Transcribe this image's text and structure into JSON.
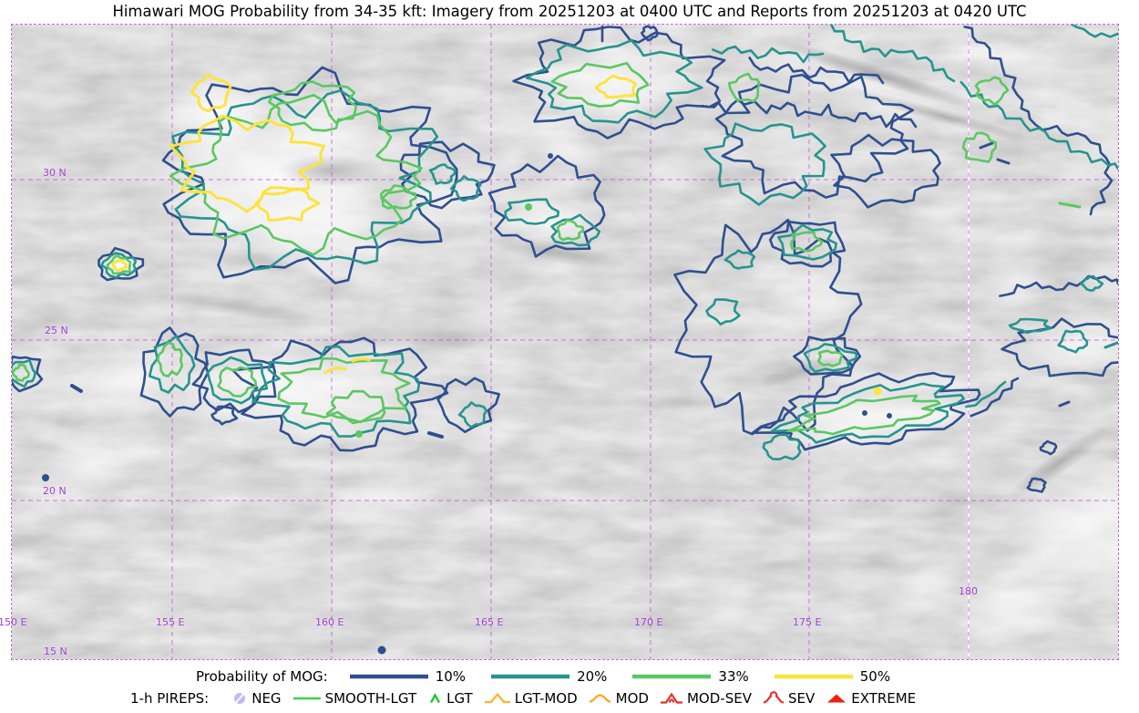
{
  "title": "Himawari MOG Probability from 34-35 kft: Imagery from 20251203 at 0400 UTC and Reports from 20251203 at 0420 UTC",
  "map": {
    "frame_color": "#c06ad2",
    "grid_color": "#c050d0",
    "label_color": "#a23ed2",
    "lat_labels": [
      "30 N",
      "25 N",
      "20 N",
      "15 N"
    ],
    "lon_labels": [
      "150 E",
      "155 E",
      "160 E",
      "165 E",
      "170 E",
      "175 E",
      "180"
    ],
    "contour_levels": [
      {
        "probability": "10%",
        "color": "#2f4f8f"
      },
      {
        "probability": "20%",
        "color": "#27948e"
      },
      {
        "probability": "33%",
        "color": "#5bc763"
      },
      {
        "probability": "50%",
        "color": "#fde33c"
      }
    ]
  },
  "legend": {
    "probability": {
      "label": "Probability of MOG:",
      "items": [
        {
          "label": "10%",
          "color": "#2f4f8f"
        },
        {
          "label": "20%",
          "color": "#27948e"
        },
        {
          "label": "33%",
          "color": "#5bc763"
        },
        {
          "label": "50%",
          "color": "#fde33c"
        }
      ]
    },
    "pireps": {
      "label": "1-h PIREPS:",
      "items": [
        {
          "label": "NEG",
          "color": "#bfbaf0",
          "icon": "neg-circle-slash-icon"
        },
        {
          "label": "SMOOTH-LGT",
          "color": "#3fd23f",
          "icon": "smooth-lgt-line-icon"
        },
        {
          "label": "LGT",
          "color": "#27c432",
          "icon": "lgt-caret-icon"
        },
        {
          "label": "LGT-MOD",
          "color": "#ffb42c",
          "icon": "lgt-mod-open-triangle-icon"
        },
        {
          "label": "MOD",
          "color": "#ffa81f",
          "icon": "mod-hump-icon"
        },
        {
          "label": "MOD-SEV",
          "color": "#e2342b",
          "icon": "mod-sev-triangle-loop-icon"
        },
        {
          "label": "SEV",
          "color": "#e2342b",
          "icon": "sev-hump-loop-icon"
        },
        {
          "label": "EXTREME",
          "color": "#ed1f10",
          "icon": "extreme-filled-triangle-icon"
        }
      ]
    }
  }
}
